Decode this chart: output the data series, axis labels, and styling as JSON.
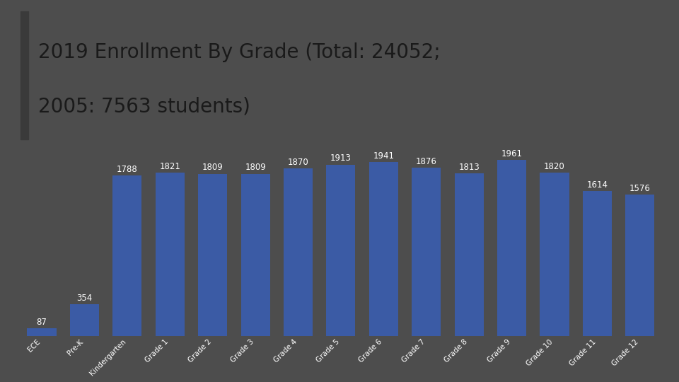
{
  "title_line1": "2019 Enrollment By Grade (Total: 24052;",
  "title_line2": "2005: 7563 students)",
  "categories": [
    "ECE",
    "Pre-K",
    "Kindergarten",
    "Grade 1",
    "Grade 2",
    "Grade 3",
    "Grade 4",
    "Grade 5",
    "Grade 6",
    "Grade 7",
    "Grade 8",
    "Grade 9",
    "Grade 10",
    "Grade 11",
    "Grade 12"
  ],
  "values": [
    87,
    354,
    1788,
    1821,
    1809,
    1809,
    1870,
    1913,
    1941,
    1876,
    1813,
    1961,
    1820,
    1614,
    1576
  ],
  "bar_color": "#3B5BA5",
  "label_color": "#FFFFFF",
  "background_color": "#4d4d4d",
  "title_bg_color": "#ebebeb",
  "title_text_color": "#1a1a1a",
  "bar_label_fontsize": 8.5,
  "xlabel_fontsize": 7.5,
  "ylim": [
    0,
    2150
  ],
  "title_fontsize": 20,
  "left_bar_color": "#3a3a3a"
}
